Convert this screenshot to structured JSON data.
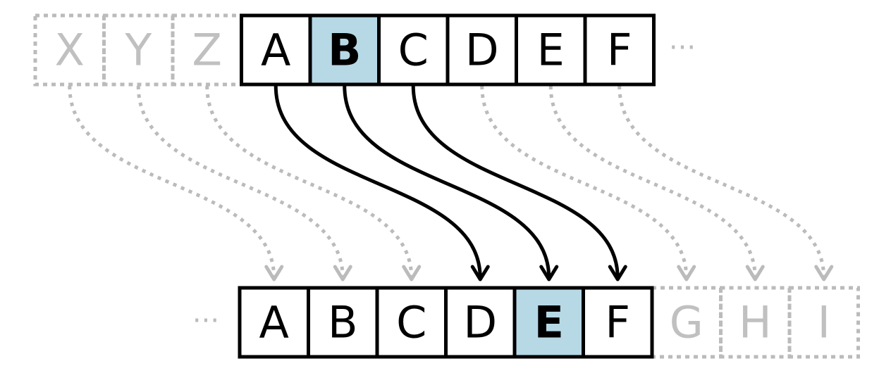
{
  "top_row": {
    "cells": [
      {
        "letter": "X",
        "state": "ghost"
      },
      {
        "letter": "Y",
        "state": "ghost"
      },
      {
        "letter": "Z",
        "state": "ghost"
      },
      {
        "letter": "A",
        "state": "normal"
      },
      {
        "letter": "B",
        "state": "highlight"
      },
      {
        "letter": "C",
        "state": "normal"
      },
      {
        "letter": "D",
        "state": "normal"
      },
      {
        "letter": "E",
        "state": "normal"
      },
      {
        "letter": "F",
        "state": "normal"
      }
    ],
    "ellipsis": "···"
  },
  "bottom_row": {
    "cells": [
      {
        "letter": "A",
        "state": "normal"
      },
      {
        "letter": "B",
        "state": "normal"
      },
      {
        "letter": "C",
        "state": "normal"
      },
      {
        "letter": "D",
        "state": "normal"
      },
      {
        "letter": "E",
        "state": "highlight"
      },
      {
        "letter": "F",
        "state": "normal"
      },
      {
        "letter": "G",
        "state": "ghost"
      },
      {
        "letter": "H",
        "state": "ghost"
      },
      {
        "letter": "I",
        "state": "ghost"
      }
    ],
    "ellipsis": "···"
  },
  "shift": 3,
  "colors": {
    "border": "#000000",
    "ghost": "#bbbbbb",
    "highlight_fill": "#b7d9e6",
    "text": "#000000",
    "ghost_text": "#c0c0c0"
  }
}
